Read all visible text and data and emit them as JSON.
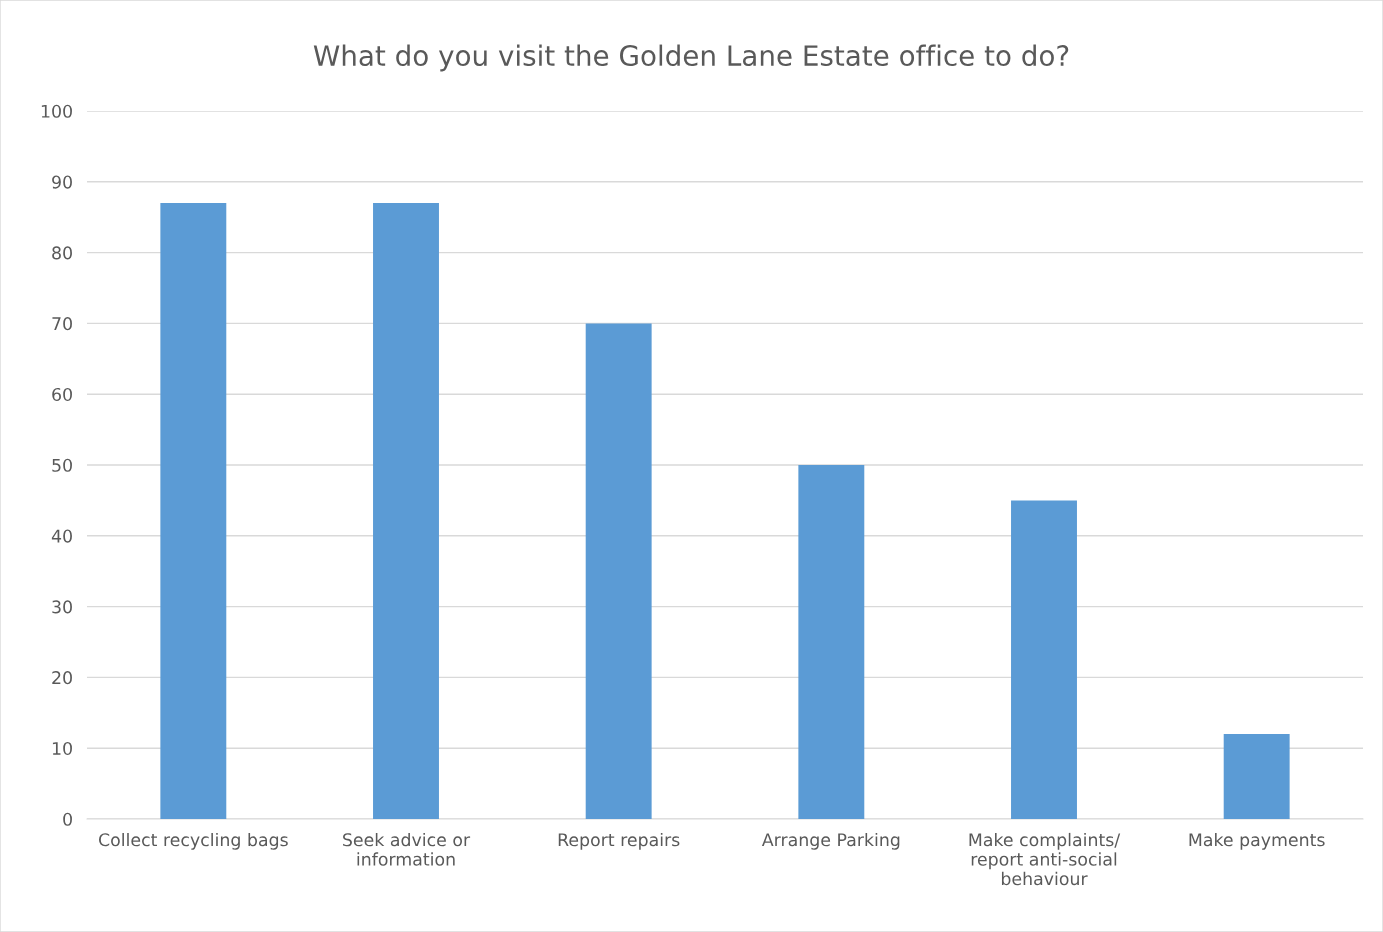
{
  "chart_data": {
    "type": "bar",
    "title": "What do you visit the Golden Lane Estate office to do?",
    "categories": [
      "Collect recycling bags",
      "Seek advice or\ninformation",
      "Report repairs",
      "Arrange Parking",
      "Make complaints/\nreport anti-social\nbehaviour",
      "Make payments"
    ],
    "values": [
      87,
      87,
      70,
      50,
      45,
      12
    ],
    "color": "#5b9bd5",
    "ylim": [
      0,
      100
    ],
    "yticks": [
      0,
      10,
      20,
      30,
      40,
      50,
      60,
      70,
      80,
      90,
      100
    ],
    "grid": "y"
  }
}
